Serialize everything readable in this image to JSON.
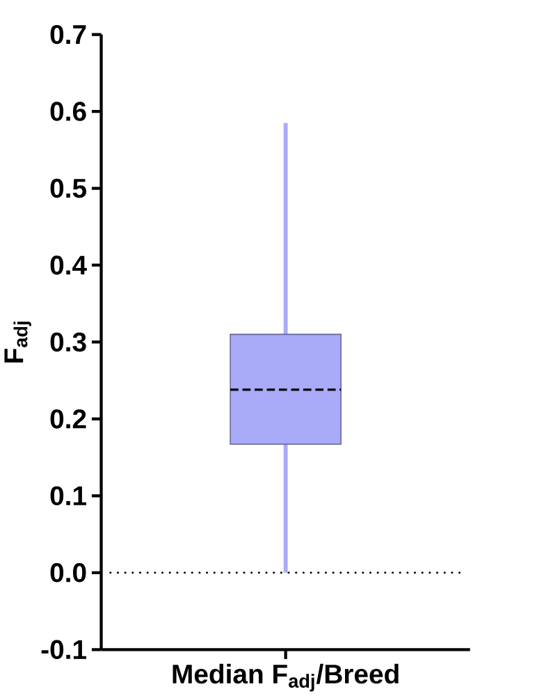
{
  "chart_data": {
    "type": "box",
    "ylabel": "F$_{adj}$",
    "categories": [
      "Median F$_{adj}$/Breed"
    ],
    "boxes": [
      {
        "low": 0.0,
        "q1": 0.167,
        "median": 0.238,
        "q3": 0.31,
        "high": 0.585
      }
    ],
    "color": "#a9aaf8",
    "ylim": [
      -0.1,
      0.7
    ],
    "yticks": [
      {
        "value": -0.1,
        "label": "-0.1"
      },
      {
        "value": 0,
        "label": "0.0"
      },
      {
        "value": 0.1,
        "label": "0.1"
      },
      {
        "value": 0.2,
        "label": "0.2"
      },
      {
        "value": 0.3,
        "label": "0.3"
      },
      {
        "value": 0.4,
        "label": "0.4"
      },
      {
        "value": 0.5,
        "label": "0.5"
      },
      {
        "value": 0.6,
        "label": "0.6"
      },
      {
        "value": 0.7,
        "label": "0.7"
      }
    ],
    "ref_lines": [
      {
        "axis": "y",
        "value": 0,
        "line_style": "dotted",
        "color": "#000000"
      }
    ]
  }
}
